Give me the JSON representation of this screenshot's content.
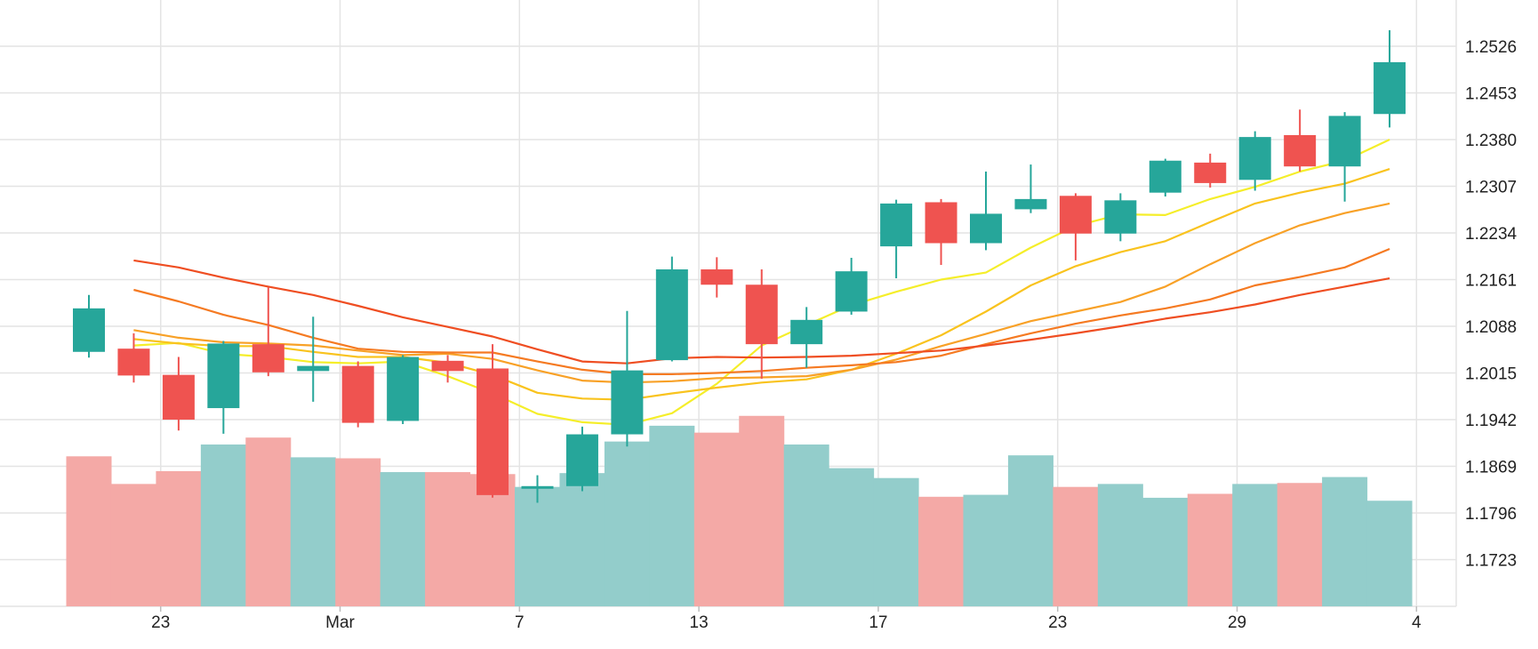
{
  "chart_data": {
    "type": "candlestick",
    "grid": true,
    "legend": "none",
    "x_tick_labels": [
      "23",
      "Mar",
      "7",
      "13",
      "17",
      "23",
      "29",
      "4"
    ],
    "x_tick_index": [
      1.6,
      5.6,
      9.6,
      13.6,
      17.6,
      21.6,
      25.6,
      29.6
    ],
    "y_tick_labels": [
      "1.2526",
      "1.2453",
      "1.2380",
      "1.2307",
      "1.2234",
      "1.2161",
      "1.2088",
      "1.2015",
      "1.1942",
      "1.1869",
      "1.1796",
      "1.1723"
    ],
    "ylim": [
      1.165,
      1.2599
    ],
    "volume_range": [
      0,
      200
    ],
    "candles": [
      {
        "o": 1.2048,
        "h": 1.2137,
        "l": 1.2039,
        "c": 1.2116
      },
      {
        "o": 1.2053,
        "h": 1.2077,
        "l": 1.2,
        "c": 1.2011
      },
      {
        "o": 1.2012,
        "h": 1.204,
        "l": 1.1925,
        "c": 1.1942
      },
      {
        "o": 1.196,
        "h": 1.2065,
        "l": 1.192,
        "c": 1.2061
      },
      {
        "o": 1.206,
        "h": 1.2149,
        "l": 1.201,
        "c": 1.2016
      },
      {
        "o": 1.2018,
        "h": 1.2103,
        "l": 1.197,
        "c": 1.2026
      },
      {
        "o": 1.2026,
        "h": 1.2033,
        "l": 1.193,
        "c": 1.1937
      },
      {
        "o": 1.194,
        "h": 1.2043,
        "l": 1.1935,
        "c": 1.204
      },
      {
        "o": 1.2034,
        "h": 1.2043,
        "l": 1.2,
        "c": 1.2018
      },
      {
        "o": 1.2022,
        "h": 1.206,
        "l": 1.182,
        "c": 1.1824
      },
      {
        "o": 1.1834,
        "h": 1.1855,
        "l": 1.1812,
        "c": 1.1838
      },
      {
        "o": 1.1838,
        "h": 1.1931,
        "l": 1.183,
        "c": 1.1919
      },
      {
        "o": 1.1919,
        "h": 1.2112,
        "l": 1.19,
        "c": 1.2019
      },
      {
        "o": 1.2035,
        "h": 1.2197,
        "l": 1.2033,
        "c": 1.2177
      },
      {
        "o": 1.2177,
        "h": 1.2196,
        "l": 1.2133,
        "c": 1.2153
      },
      {
        "o": 1.2153,
        "h": 1.2177,
        "l": 1.2006,
        "c": 1.206
      },
      {
        "o": 1.206,
        "h": 1.2118,
        "l": 1.2023,
        "c": 1.2098
      },
      {
        "o": 1.2111,
        "h": 1.2195,
        "l": 1.2106,
        "c": 1.2174
      },
      {
        "o": 1.2213,
        "h": 1.2286,
        "l": 1.2163,
        "c": 1.228
      },
      {
        "o": 1.2282,
        "h": 1.2287,
        "l": 1.2184,
        "c": 1.2218
      },
      {
        "o": 1.2218,
        "h": 1.233,
        "l": 1.2207,
        "c": 1.2264
      },
      {
        "o": 1.2271,
        "h": 1.2341,
        "l": 1.2265,
        "c": 1.2287
      },
      {
        "o": 1.2292,
        "h": 1.2296,
        "l": 1.2191,
        "c": 1.2233
      },
      {
        "o": 1.2233,
        "h": 1.2296,
        "l": 1.2221,
        "c": 1.2285
      },
      {
        "o": 1.2297,
        "h": 1.235,
        "l": 1.2291,
        "c": 1.2347
      },
      {
        "o": 1.2344,
        "h": 1.2358,
        "l": 1.2305,
        "c": 1.2312
      },
      {
        "o": 1.2317,
        "h": 1.2393,
        "l": 1.23,
        "c": 1.2384
      },
      {
        "o": 1.2387,
        "h": 1.2427,
        "l": 1.233,
        "c": 1.2338
      },
      {
        "o": 1.2338,
        "h": 1.2423,
        "l": 1.2283,
        "c": 1.2417
      },
      {
        "o": 1.242,
        "h": 1.2551,
        "l": 1.2399,
        "c": 1.2501
      }
    ],
    "volumes": [
      {
        "v": 152,
        "dir": "down"
      },
      {
        "v": 124,
        "dir": "down"
      },
      {
        "v": 137,
        "dir": "down"
      },
      {
        "v": 164,
        "dir": "up"
      },
      {
        "v": 171,
        "dir": "down"
      },
      {
        "v": 151,
        "dir": "up"
      },
      {
        "v": 150,
        "dir": "down"
      },
      {
        "v": 136,
        "dir": "up"
      },
      {
        "v": 136,
        "dir": "down"
      },
      {
        "v": 134,
        "dir": "down"
      },
      {
        "v": 121,
        "dir": "up"
      },
      {
        "v": 135,
        "dir": "up"
      },
      {
        "v": 167,
        "dir": "up"
      },
      {
        "v": 183,
        "dir": "up"
      },
      {
        "v": 176,
        "dir": "down"
      },
      {
        "v": 193,
        "dir": "down"
      },
      {
        "v": 164,
        "dir": "up"
      },
      {
        "v": 140,
        "dir": "up"
      },
      {
        "v": 130,
        "dir": "up"
      },
      {
        "v": 111,
        "dir": "down"
      },
      {
        "v": 113,
        "dir": "up"
      },
      {
        "v": 153,
        "dir": "up"
      },
      {
        "v": 121,
        "dir": "down"
      },
      {
        "v": 124,
        "dir": "up"
      },
      {
        "v": 110,
        "dir": "up"
      },
      {
        "v": 114,
        "dir": "down"
      },
      {
        "v": 124,
        "dir": "up"
      },
      {
        "v": 125,
        "dir": "down"
      },
      {
        "v": 131,
        "dir": "up"
      },
      {
        "v": 107,
        "dir": "up"
      }
    ],
    "moving_averages": [
      {
        "color": "#f5ee2a",
        "values": [
          null,
          1.2058,
          1.2062,
          1.2045,
          1.204,
          1.2032,
          1.203,
          1.2033,
          1.201,
          1.1983,
          1.1951,
          1.1938,
          1.1934,
          1.1952,
          1.1998,
          1.2058,
          1.209,
          1.2121,
          1.2142,
          1.2161,
          1.2172,
          1.2211,
          1.2245,
          1.2263,
          1.2262,
          1.2287,
          1.2306,
          1.233,
          1.2347,
          1.238
        ]
      },
      {
        "color": "#f9c31e",
        "values": [
          null,
          1.2068,
          1.2061,
          1.2057,
          1.2057,
          1.2048,
          1.204,
          1.204,
          1.2031,
          1.2012,
          1.1984,
          1.1975,
          1.1973,
          1.1983,
          1.1992,
          1.2,
          1.2005,
          1.202,
          1.2045,
          1.2074,
          1.2111,
          1.2152,
          1.2182,
          1.2204,
          1.2221,
          1.2251,
          1.228,
          1.2297,
          1.2311,
          1.2334
        ]
      },
      {
        "color": "#f8a127",
        "values": [
          null,
          1.2082,
          1.207,
          1.2063,
          1.2061,
          1.2058,
          1.205,
          1.2043,
          1.2045,
          1.2037,
          1.2019,
          1.2003,
          1.2,
          1.2002,
          1.2007,
          1.2008,
          1.201,
          1.202,
          1.2036,
          1.2057,
          1.2076,
          1.2096,
          1.2111,
          1.2126,
          1.215,
          1.2185,
          1.2218,
          1.2246,
          1.2265,
          1.228
        ]
      },
      {
        "color": "#f57a22",
        "values": [
          null,
          1.2145,
          1.2127,
          1.2106,
          1.209,
          1.207,
          1.2053,
          1.2048,
          1.2047,
          1.2047,
          1.2033,
          1.202,
          1.2013,
          1.2013,
          1.2015,
          1.2018,
          1.2023,
          1.2027,
          1.2032,
          1.2042,
          1.206,
          1.2077,
          1.2092,
          1.2105,
          1.2116,
          1.213,
          1.2152,
          1.2165,
          1.218,
          1.2209
        ]
      },
      {
        "color": "#ef4e22",
        "values": [
          null,
          1.2191,
          1.218,
          1.2164,
          1.215,
          1.2137,
          1.212,
          1.2102,
          1.2087,
          1.2072,
          1.2052,
          1.2033,
          1.203,
          1.2038,
          1.204,
          1.2039,
          1.204,
          1.2042,
          1.2046,
          1.205,
          1.2058,
          1.2067,
          1.2077,
          1.2088,
          1.21,
          1.211,
          1.2122,
          1.2137,
          1.215,
          1.2163
        ]
      }
    ],
    "colors": {
      "up": "#26a69a",
      "down": "#ef5350",
      "volume_up": "#93cdcb",
      "volume_down": "#f4a9a6",
      "grid": "#e4e4e4"
    }
  }
}
